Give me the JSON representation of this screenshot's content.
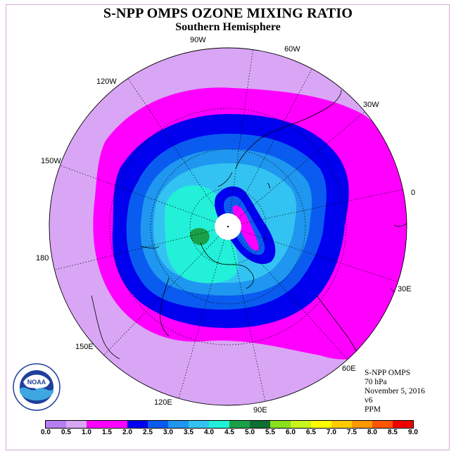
{
  "title": "S-NPP OMPS OZONE MIXING RATIO",
  "subtitle": "Southern Hemisphere",
  "longitude_labels": [
    "90W",
    "60W",
    "30W",
    "0",
    "30E",
    "60E",
    "90E",
    "120E",
    "150E",
    "180",
    "150W",
    "120W"
  ],
  "info": {
    "instrument": "S-NPP OMPS",
    "level": "70 hPa",
    "date": "November 5, 2016",
    "version": "v6",
    "units": "PPM"
  },
  "logo": {
    "text": "NOAA",
    "ring_text": "NATIONAL OCEANIC AND ATMOSPHERIC ADMINISTRATION · U.S. DEPARTMENT OF COMMERCE"
  },
  "colorbar": {
    "ticks": [
      "0.0",
      "0.5",
      "1.0",
      "1.5",
      "2.0",
      "2.5",
      "3.0",
      "3.5",
      "4.0",
      "4.5",
      "5.0",
      "5.5",
      "6.0",
      "6.5",
      "7.0",
      "7.5",
      "8.0",
      "8.5",
      "9.0"
    ],
    "colors": [
      "#b57ff2",
      "#d9a6f5",
      "#ff00ff",
      "#ff00ff",
      "#0000ee",
      "#0a5cf0",
      "#1f96f0",
      "#33c3f2",
      "#22f0d8",
      "#1aa048",
      "#0e7030",
      "#88e01a",
      "#c8f51e",
      "#ffff00",
      "#ffcc00",
      "#ff9900",
      "#ff5500",
      "#ee0000",
      "#8b4a2b"
    ]
  },
  "map_colors": {
    "outer": "#d9a6f5",
    "magenta": "#ff00ff",
    "blue": "#0000ee",
    "band_2_0": "#0a5cf0",
    "band_2_5": "#1f96f0",
    "band_3_0": "#33c3f2",
    "band_3_5": "#22f0d8",
    "dark_green": "#1aa048"
  }
}
